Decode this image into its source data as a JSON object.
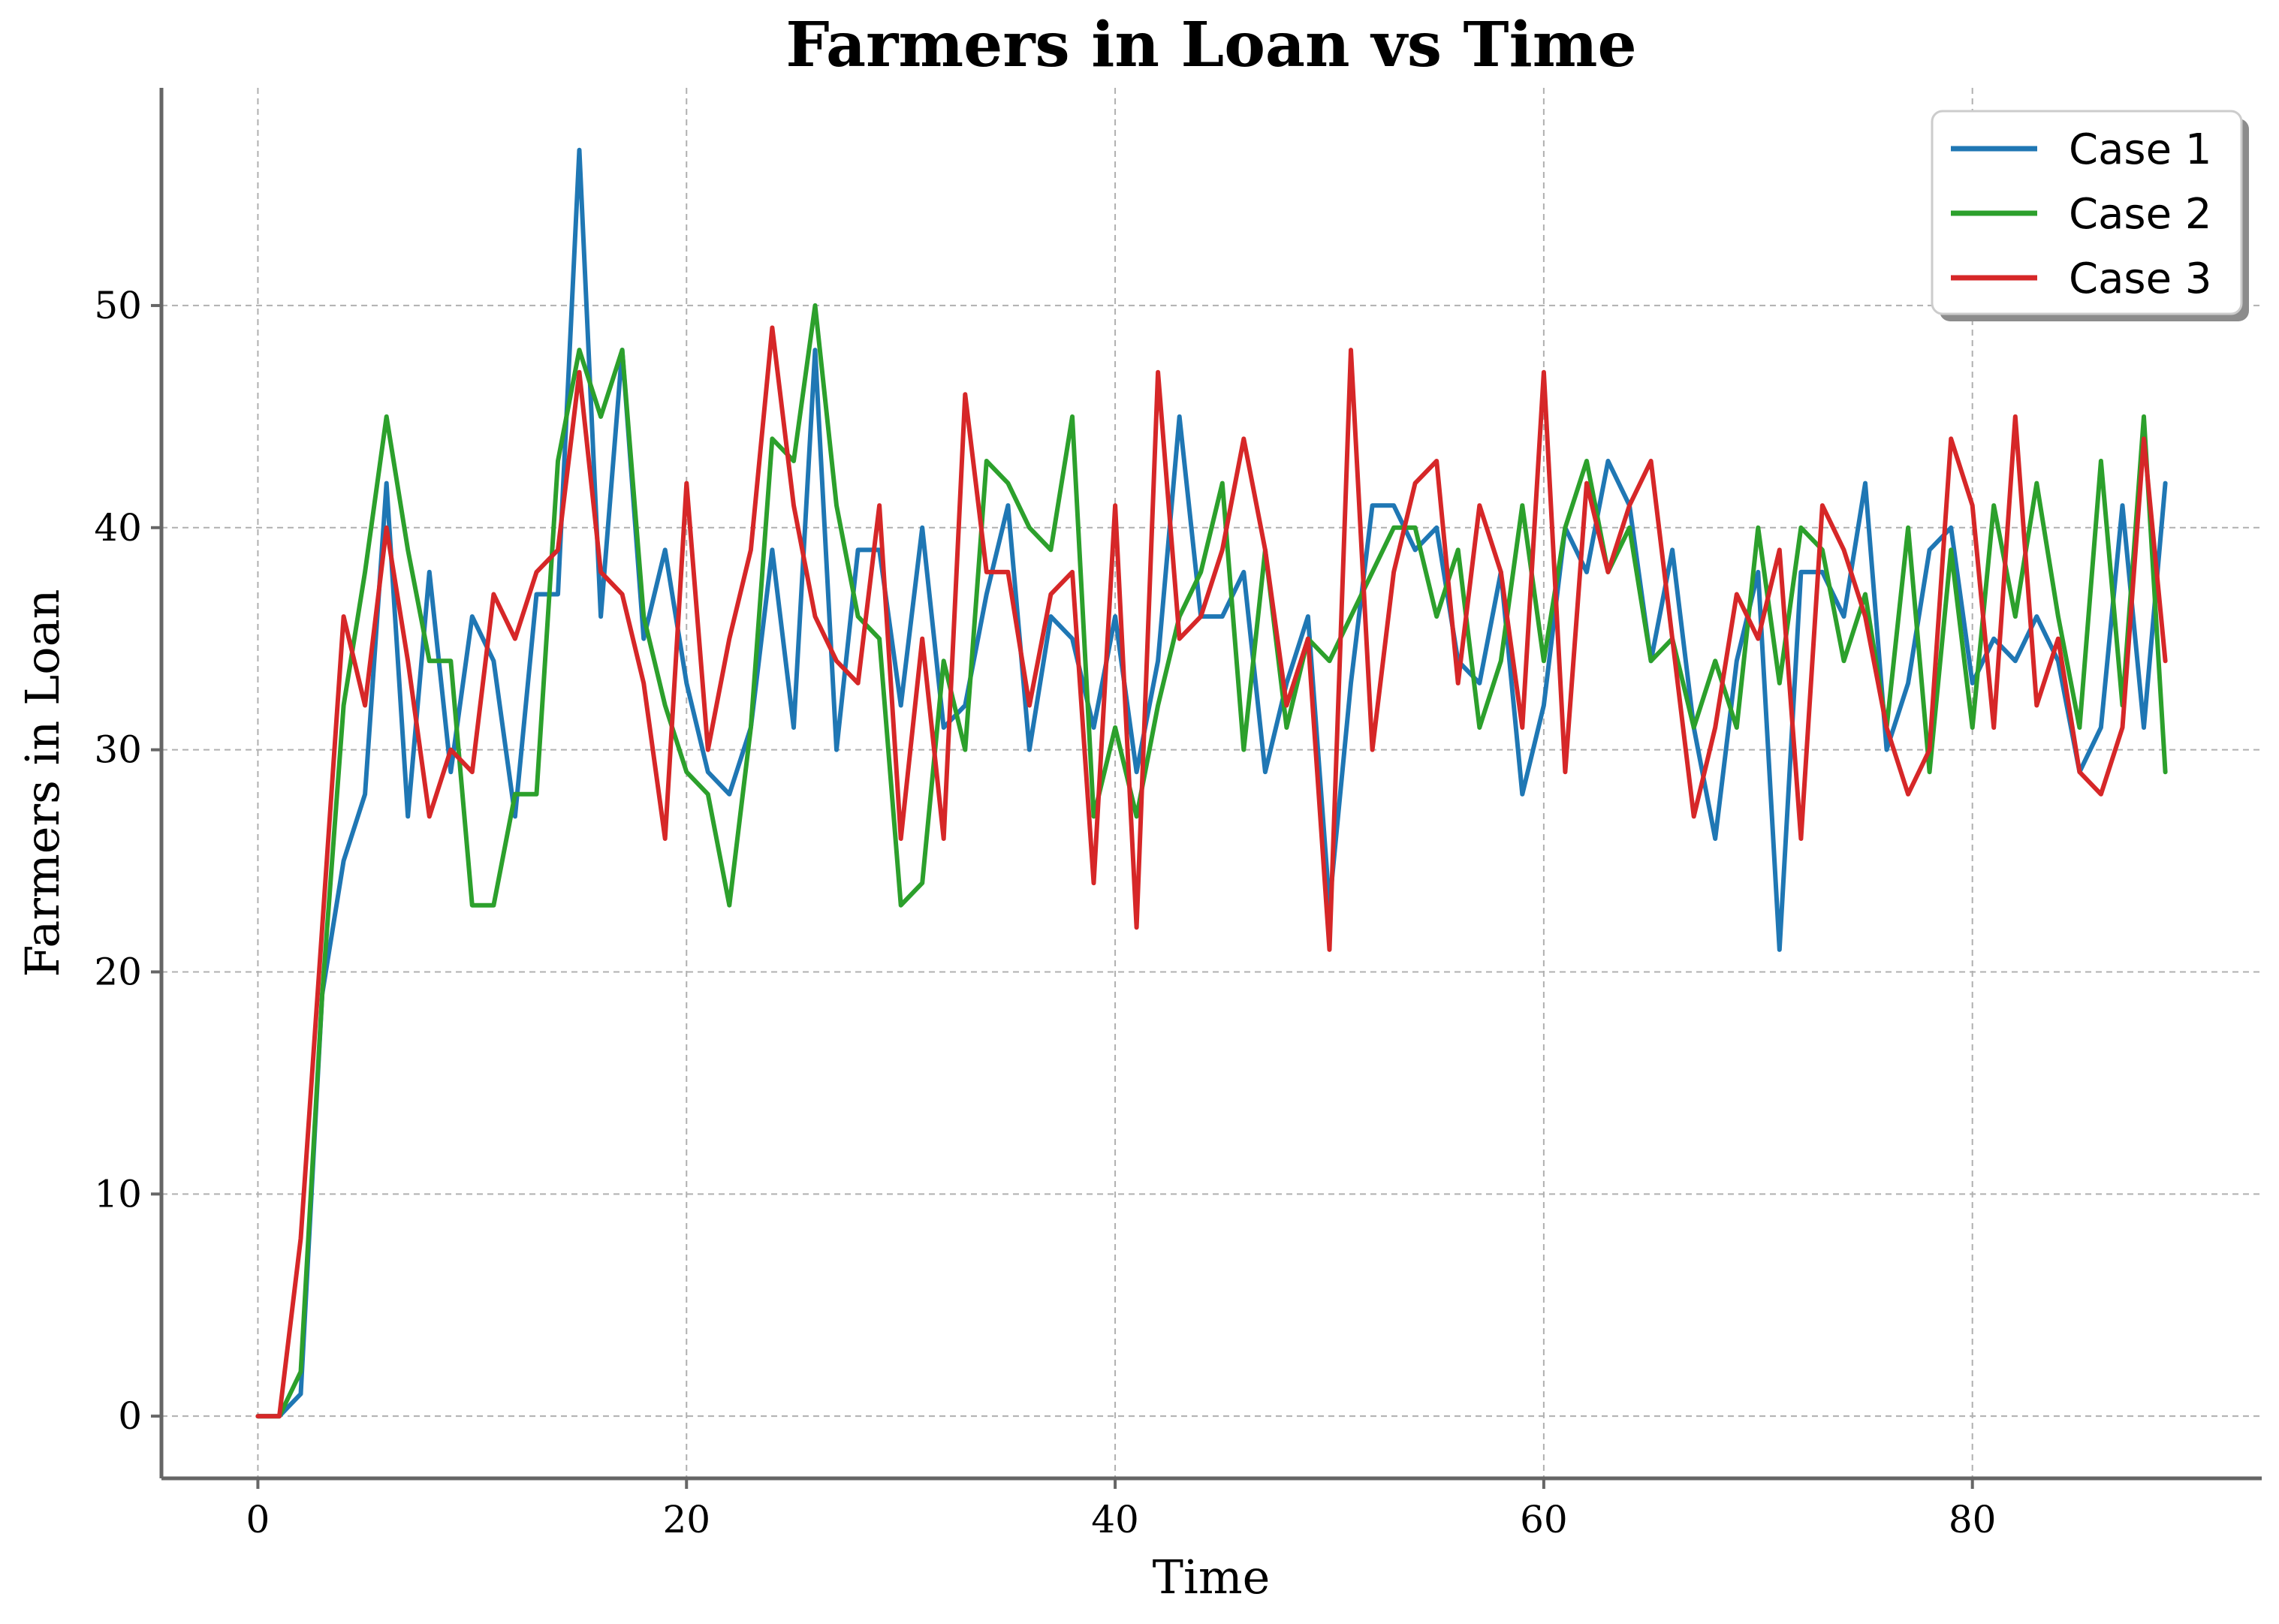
{
  "chart_data": {
    "type": "line",
    "title": "Farmers in Loan vs Time",
    "xlabel": "Time",
    "ylabel": "Farmers in Loan",
    "xlim": [
      -4.5,
      93.5
    ],
    "ylim": [
      -2.8,
      59.8
    ],
    "xticks": [
      0,
      20,
      40,
      60,
      80
    ],
    "yticks": [
      0,
      10,
      20,
      30,
      40,
      50
    ],
    "grid": true,
    "legend_position": "top-right",
    "series": [
      {
        "name": "Case 1",
        "color": "#1f77b4",
        "values": [
          0,
          0,
          1,
          19,
          25,
          28,
          42,
          27,
          38,
          29,
          36,
          34,
          27,
          37,
          37,
          57,
          36,
          48,
          35,
          39,
          33,
          29,
          28,
          31,
          39,
          31,
          48,
          30,
          39,
          39,
          32,
          40,
          31,
          32,
          37,
          41,
          30,
          36,
          35,
          31,
          36,
          29,
          34,
          45,
          36,
          36,
          38,
          29,
          33,
          36,
          23,
          33,
          41,
          41,
          39,
          40,
          34,
          33,
          38,
          28,
          32,
          40,
          38,
          43,
          41,
          34,
          39,
          31,
          26,
          34,
          38,
          21,
          38,
          38,
          36,
          42,
          30,
          33,
          39,
          40,
          33,
          35,
          34,
          36,
          34,
          29,
          31,
          41,
          31,
          42
        ]
      },
      {
        "name": "Case 2",
        "color": "#2ca02c",
        "values": [
          0,
          0,
          2,
          19,
          32,
          38,
          45,
          39,
          34,
          34,
          23,
          23,
          28,
          28,
          43,
          48,
          45,
          48,
          36,
          32,
          29,
          28,
          23,
          31,
          44,
          43,
          50,
          41,
          36,
          35,
          23,
          24,
          34,
          30,
          43,
          42,
          40,
          39,
          45,
          27,
          31,
          27,
          32,
          36,
          38,
          42,
          30,
          39,
          31,
          35,
          34,
          36,
          38,
          40,
          40,
          36,
          39,
          31,
          34,
          41,
          34,
          40,
          43,
          38,
          40,
          34,
          35,
          31,
          34,
          31,
          40,
          33,
          40,
          39,
          34,
          37,
          31,
          40,
          29,
          39,
          31,
          41,
          36,
          42,
          36,
          31,
          43,
          32,
          45,
          29
        ]
      },
      {
        "name": "Case 3",
        "color": "#d62728",
        "values": [
          0,
          0,
          8,
          22,
          36,
          32,
          40,
          34,
          27,
          30,
          29,
          37,
          35,
          38,
          39,
          47,
          38,
          37,
          33,
          26,
          42,
          30,
          35,
          39,
          49,
          41,
          36,
          34,
          33,
          41,
          26,
          35,
          26,
          46,
          38,
          38,
          32,
          37,
          38,
          24,
          41,
          22,
          47,
          35,
          36,
          39,
          44,
          39,
          32,
          35,
          21,
          48,
          30,
          38,
          42,
          43,
          33,
          41,
          38,
          31,
          47,
          29,
          42,
          38,
          41,
          43,
          35,
          27,
          31,
          37,
          35,
          39,
          26,
          41,
          39,
          36,
          31,
          28,
          30,
          44,
          41,
          31,
          45,
          32,
          35,
          29,
          28,
          31,
          44,
          34
        ]
      }
    ]
  }
}
